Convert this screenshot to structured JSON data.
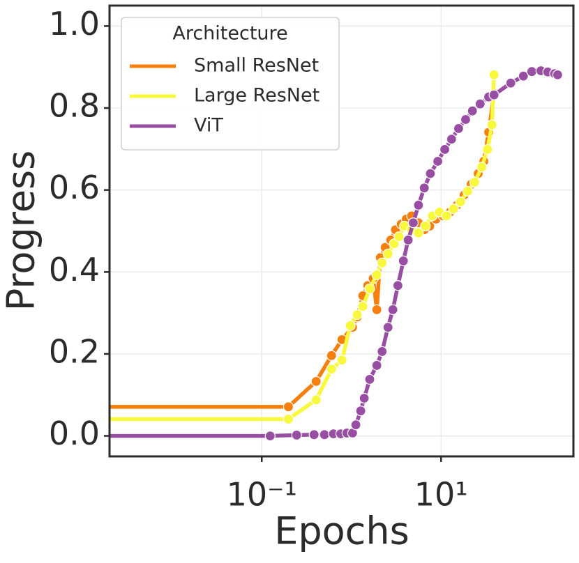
{
  "chart_data": {
    "type": "line",
    "xlabel": "Epochs",
    "ylabel": "Progress",
    "xscale": "log",
    "xlim": [
      0.002,
      300
    ],
    "ylim": [
      -0.05,
      1.05
    ],
    "xticks": [
      {
        "value": 0.1,
        "label": "10⁻¹"
      },
      {
        "value": 10,
        "label": "10¹"
      }
    ],
    "yticks": [
      {
        "value": 0,
        "label": "0.0"
      },
      {
        "value": 0.2,
        "label": "0.2"
      },
      {
        "value": 0.4,
        "label": "0.4"
      },
      {
        "value": 0.6,
        "label": "0.6"
      },
      {
        "value": 0.8,
        "label": "0.8"
      },
      {
        "value": 1.0,
        "label": "1.0"
      }
    ],
    "grid": true,
    "legend_title": "Architecture",
    "legend_position": "upper left",
    "series": [
      {
        "name": "Small ResNet",
        "color": "#f57f0f",
        "x": [
          0.001,
          0.198,
          0.404,
          0.6,
          0.785,
          1.03,
          1.16,
          1.34,
          1.52,
          1.75,
          1.92,
          2.1,
          2.38,
          2.75,
          3.1,
          3.6,
          4.1,
          4.7,
          5.6,
          6.5,
          7.5,
          8.8,
          10.5,
          12.6,
          15.1,
          18.1,
          21.7,
          26,
          30,
          34,
          39
        ],
        "values": [
          0.071,
          0.071,
          0.133,
          0.196,
          0.235,
          0.265,
          0.29,
          0.342,
          0.367,
          0.384,
          0.308,
          0.435,
          0.46,
          0.478,
          0.503,
          0.517,
          0.529,
          0.537,
          0.52,
          0.503,
          0.512,
          0.529,
          0.537,
          0.546,
          0.563,
          0.588,
          0.614,
          0.64,
          0.67,
          0.741,
          0.835
        ]
      },
      {
        "name": "Large ResNet",
        "color": "#f8f83c",
        "x": [
          0.001,
          0.198,
          0.404,
          0.6,
          0.785,
          0.97,
          1.16,
          1.34,
          1.6,
          1.92,
          2.2,
          2.56,
          3.0,
          3.4,
          3.9,
          4.7,
          5.6,
          6.7,
          8.0,
          9.6,
          11.5,
          13.8,
          16.5,
          19.8,
          23.7,
          28.5,
          33,
          37,
          39
        ],
        "values": [
          0.041,
          0.041,
          0.088,
          0.163,
          0.185,
          0.269,
          0.296,
          0.316,
          0.359,
          0.393,
          0.422,
          0.444,
          0.469,
          0.486,
          0.512,
          0.503,
          0.495,
          0.512,
          0.537,
          0.546,
          0.537,
          0.554,
          0.571,
          0.597,
          0.619,
          0.656,
          0.699,
          0.759,
          0.881
        ]
      },
      {
        "name": "ViT",
        "color": "#984ea3",
        "x": [
          0.001,
          0.124,
          0.245,
          0.383,
          0.5,
          0.63,
          0.76,
          0.89,
          1.03,
          1.12,
          1.27,
          1.39,
          1.6,
          1.92,
          2.2,
          2.56,
          2.9,
          3.3,
          3.8,
          4.3,
          4.9,
          5.6,
          6.5,
          7.6,
          9.2,
          11,
          13.1,
          15.7,
          18.8,
          22.4,
          27.3,
          34,
          39,
          60,
          83,
          103,
          130,
          155,
          185,
          200
        ],
        "values": [
          0,
          0,
          0.002,
          0.003,
          0.003,
          0.005,
          0.005,
          0.007,
          0.007,
          0.027,
          0.061,
          0.092,
          0.138,
          0.172,
          0.206,
          0.265,
          0.308,
          0.367,
          0.427,
          0.478,
          0.52,
          0.563,
          0.605,
          0.64,
          0.67,
          0.699,
          0.724,
          0.75,
          0.772,
          0.793,
          0.81,
          0.827,
          0.832,
          0.861,
          0.878,
          0.889,
          0.891,
          0.888,
          0.884,
          0.881
        ]
      }
    ]
  }
}
